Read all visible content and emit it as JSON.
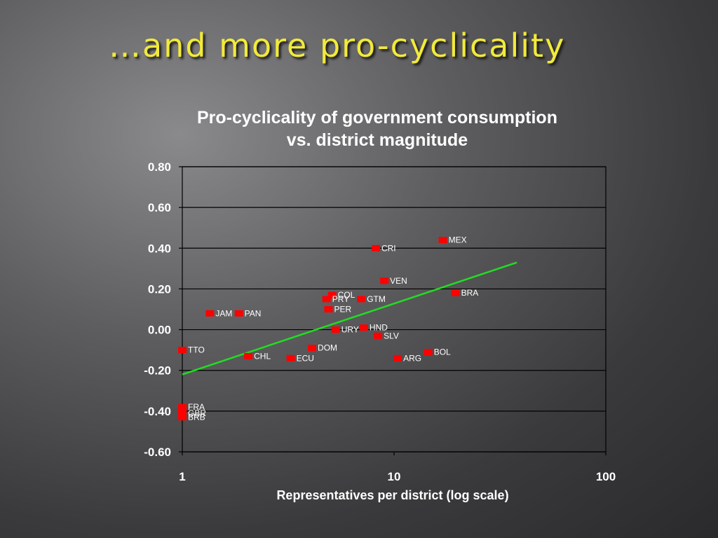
{
  "slide": {
    "title": "…and more pro-cyclicality"
  },
  "chart_data": {
    "type": "scatter",
    "title_line1": "Pro-cyclicality of government consumption",
    "title_line2": "vs. district magnitude",
    "xlabel": "Representatives per district (log scale)",
    "ylabel": "",
    "x_scale": "log",
    "xlim": [
      1,
      100
    ],
    "ylim": [
      -0.6,
      0.8
    ],
    "x_ticks": [
      1,
      10,
      100
    ],
    "x_tick_labels": [
      "1",
      "10",
      "100"
    ],
    "y_ticks": [
      0.8,
      0.6,
      0.4,
      0.2,
      0.0,
      -0.2,
      -0.4,
      -0.6
    ],
    "y_tick_labels": [
      "0.80",
      "0.60",
      "0.40",
      "0.20",
      "0.00",
      "-0.20",
      "-0.40",
      "-0.60"
    ],
    "grid": "horizontal",
    "marker_color": "#ff0000",
    "trend_color": "#22dd22",
    "trendline": {
      "x": [
        1,
        38
      ],
      "y": [
        -0.22,
        0.33
      ]
    },
    "points": [
      {
        "label": "MEX",
        "x": 17,
        "y": 0.44
      },
      {
        "label": "CRI",
        "x": 8.2,
        "y": 0.4
      },
      {
        "label": "VEN",
        "x": 9.0,
        "y": 0.24
      },
      {
        "label": "BRA",
        "x": 19.5,
        "y": 0.18
      },
      {
        "label": "COL",
        "x": 5.1,
        "y": 0.17
      },
      {
        "label": "PRY",
        "x": 4.8,
        "y": 0.15
      },
      {
        "label": "GTM",
        "x": 7.0,
        "y": 0.15
      },
      {
        "label": "PER",
        "x": 4.9,
        "y": 0.1
      },
      {
        "label": "JAM",
        "x": 1.35,
        "y": 0.08
      },
      {
        "label": "PAN",
        "x": 1.85,
        "y": 0.08
      },
      {
        "label": "HND",
        "x": 7.2,
        "y": 0.01
      },
      {
        "label": "URY",
        "x": 5.3,
        "y": 0.0
      },
      {
        "label": "SLV",
        "x": 8.4,
        "y": -0.03
      },
      {
        "label": "DOM",
        "x": 4.1,
        "y": -0.09
      },
      {
        "label": "TTO",
        "x": 1.0,
        "y": -0.1
      },
      {
        "label": "BOL",
        "x": 14.5,
        "y": -0.11
      },
      {
        "label": "CHL",
        "x": 2.05,
        "y": -0.13
      },
      {
        "label": "ECU",
        "x": 3.25,
        "y": -0.14
      },
      {
        "label": "ARG",
        "x": 10.4,
        "y": -0.14
      },
      {
        "label": "FRA",
        "x": 1.0,
        "y": -0.38
      },
      {
        "label": "GBR",
        "x": 1.0,
        "y": -0.41
      },
      {
        "label": "BRB",
        "x": 1.0,
        "y": -0.43
      }
    ]
  }
}
